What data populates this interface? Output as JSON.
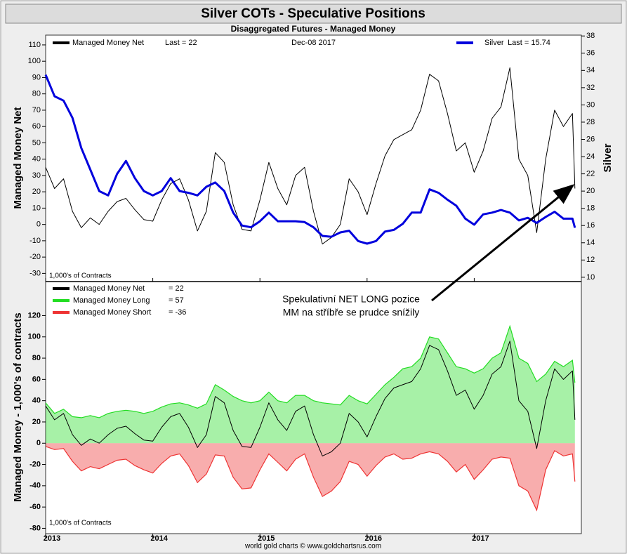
{
  "chart_data": [
    {
      "type": "line",
      "title": "Silver COTs - Speculative Positions",
      "subtitle": "Disaggregated Futures - Managed Money",
      "date_label": "Dec-08  2017",
      "units_label": "1,000's of Contracts",
      "ylabel": "Managed Money Net",
      "y2label": "Silver",
      "x": [
        2013.0,
        2013.083,
        2013.167,
        2013.25,
        2013.333,
        2013.417,
        2013.5,
        2013.583,
        2013.667,
        2013.75,
        2013.833,
        2013.917,
        2014.0,
        2014.083,
        2014.167,
        2014.25,
        2014.333,
        2014.417,
        2014.5,
        2014.583,
        2014.667,
        2014.75,
        2014.833,
        2014.917,
        2015.0,
        2015.083,
        2015.167,
        2015.25,
        2015.333,
        2015.417,
        2015.5,
        2015.583,
        2015.667,
        2015.75,
        2015.833,
        2015.917,
        2016.0,
        2016.083,
        2016.167,
        2016.25,
        2016.333,
        2016.417,
        2016.5,
        2016.583,
        2016.667,
        2016.75,
        2016.833,
        2016.917,
        2017.0,
        2017.083,
        2017.167,
        2017.25,
        2017.333,
        2017.417,
        2017.5,
        2017.583,
        2017.667,
        2017.75,
        2017.833,
        2017.917,
        2017.94
      ],
      "xlim": [
        2013,
        2018
      ],
      "ylim": [
        -35,
        116
      ],
      "yticks": [
        -30,
        -20,
        -10,
        0,
        10,
        20,
        30,
        40,
        50,
        60,
        70,
        80,
        90,
        100,
        110
      ],
      "y2lim": [
        9.5,
        38.1
      ],
      "y2ticks": [
        10,
        12,
        14,
        16,
        18,
        20,
        22,
        24,
        26,
        28,
        30,
        32,
        34,
        36,
        38
      ],
      "series": [
        {
          "name": "Managed Money Net",
          "last_label": "Last = 22",
          "color": "#000000",
          "values": [
            35,
            22,
            28,
            8,
            -2,
            4,
            0,
            8,
            14,
            16,
            9,
            3,
            2,
            15,
            25,
            28,
            15,
            -4,
            8,
            44,
            38,
            12,
            -3,
            -4,
            15,
            38,
            22,
            12,
            30,
            35,
            8,
            -12,
            -8,
            0,
            28,
            20,
            6,
            25,
            42,
            52,
            55,
            58,
            70,
            92,
            88,
            68,
            45,
            50,
            32,
            45,
            65,
            72,
            96,
            40,
            30,
            -5,
            40,
            70,
            60,
            68,
            22
          ]
        },
        {
          "name": "Silver",
          "last_label": "Last = 15.74",
          "color": "#0000dd",
          "axis": "y2",
          "values": [
            33.5,
            31,
            30.5,
            28.5,
            25,
            22.5,
            20,
            19.5,
            22,
            23.5,
            21.5,
            20,
            19.5,
            20,
            21.5,
            20,
            19.8,
            19.5,
            20.5,
            21,
            20,
            17.5,
            16,
            15.8,
            16.5,
            17.5,
            16.5,
            16.5,
            16.5,
            16.4,
            15.8,
            14.8,
            14.7,
            15.2,
            15.4,
            14.2,
            13.9,
            14.2,
            15.3,
            15.5,
            16.2,
            17.5,
            17.5,
            20.2,
            19.8,
            19,
            18.3,
            16.8,
            16.1,
            17.3,
            17.5,
            17.8,
            17.5,
            16.6,
            16.9,
            16.3,
            17.0,
            17.6,
            16.8,
            16.8,
            15.74
          ]
        }
      ]
    },
    {
      "type": "area",
      "ylabel": "Managed Money - 1,000's of contracts",
      "units_label": "1,000's of Contracts",
      "source": "world gold charts © www.goldchartsrus.com",
      "annotation": [
        "Spekulativní NET LONG pozice",
        "MM na stříbře se prudce snížily"
      ],
      "x": [
        2013.0,
        2013.083,
        2013.167,
        2013.25,
        2013.333,
        2013.417,
        2013.5,
        2013.583,
        2013.667,
        2013.75,
        2013.833,
        2013.917,
        2014.0,
        2014.083,
        2014.167,
        2014.25,
        2014.333,
        2014.417,
        2014.5,
        2014.583,
        2014.667,
        2014.75,
        2014.833,
        2014.917,
        2015.0,
        2015.083,
        2015.167,
        2015.25,
        2015.333,
        2015.417,
        2015.5,
        2015.583,
        2015.667,
        2015.75,
        2015.833,
        2015.917,
        2016.0,
        2016.083,
        2016.167,
        2016.25,
        2016.333,
        2016.417,
        2016.5,
        2016.583,
        2016.667,
        2016.75,
        2016.833,
        2016.917,
        2017.0,
        2017.083,
        2017.167,
        2017.25,
        2017.333,
        2017.417,
        2017.5,
        2017.583,
        2017.667,
        2017.75,
        2017.833,
        2017.917,
        2017.94
      ],
      "xlim": [
        2013,
        2018
      ],
      "xticks": [
        2013,
        2014,
        2015,
        2016,
        2017
      ],
      "ylim": [
        -85,
        152
      ],
      "yticks": [
        -80,
        -60,
        -40,
        -20,
        0,
        20,
        40,
        60,
        80,
        100,
        120
      ],
      "series": [
        {
          "name": "Managed Money Long",
          "last_label": "=  57",
          "color": "#22dd22",
          "values": [
            38,
            28,
            32,
            25,
            24,
            26,
            24,
            28,
            30,
            31,
            30,
            28,
            30,
            34,
            37,
            38,
            36,
            33,
            37,
            55,
            50,
            44,
            40,
            38,
            40,
            48,
            40,
            38,
            45,
            45,
            40,
            38,
            37,
            36,
            45,
            40,
            37,
            46,
            55,
            62,
            70,
            72,
            80,
            100,
            98,
            85,
            72,
            70,
            66,
            70,
            80,
            85,
            110,
            80,
            75,
            58,
            65,
            77,
            72,
            78,
            57
          ]
        },
        {
          "name": "Managed Money Short",
          "last_label": "= -36",
          "color": "#ee3333",
          "values": [
            -3,
            -6,
            -5,
            -17,
            -26,
            -22,
            -24,
            -20,
            -16,
            -15,
            -21,
            -25,
            -28,
            -19,
            -12,
            -10,
            -21,
            -37,
            -29,
            -11,
            -12,
            -32,
            -43,
            -42,
            -25,
            -10,
            -18,
            -26,
            -15,
            -10,
            -32,
            -50,
            -45,
            -36,
            -17,
            -20,
            -31,
            -21,
            -13,
            -10,
            -15,
            -14,
            -10,
            -8,
            -10,
            -17,
            -27,
            -20,
            -34,
            -25,
            -15,
            -13,
            -14,
            -40,
            -45,
            -63,
            -25,
            -7,
            -12,
            -10,
            -36
          ]
        },
        {
          "name": "Managed Money Net",
          "last_label": "= 22",
          "color": "#000000",
          "type": "line",
          "values": [
            35,
            22,
            28,
            8,
            -2,
            4,
            0,
            8,
            14,
            16,
            9,
            3,
            2,
            15,
            25,
            28,
            15,
            -4,
            8,
            44,
            38,
            12,
            -3,
            -4,
            15,
            38,
            22,
            12,
            30,
            35,
            8,
            -12,
            -8,
            0,
            28,
            20,
            6,
            25,
            42,
            52,
            55,
            58,
            70,
            92,
            88,
            68,
            45,
            50,
            32,
            45,
            65,
            72,
            96,
            40,
            30,
            -5,
            40,
            70,
            60,
            68,
            22
          ]
        }
      ]
    }
  ]
}
